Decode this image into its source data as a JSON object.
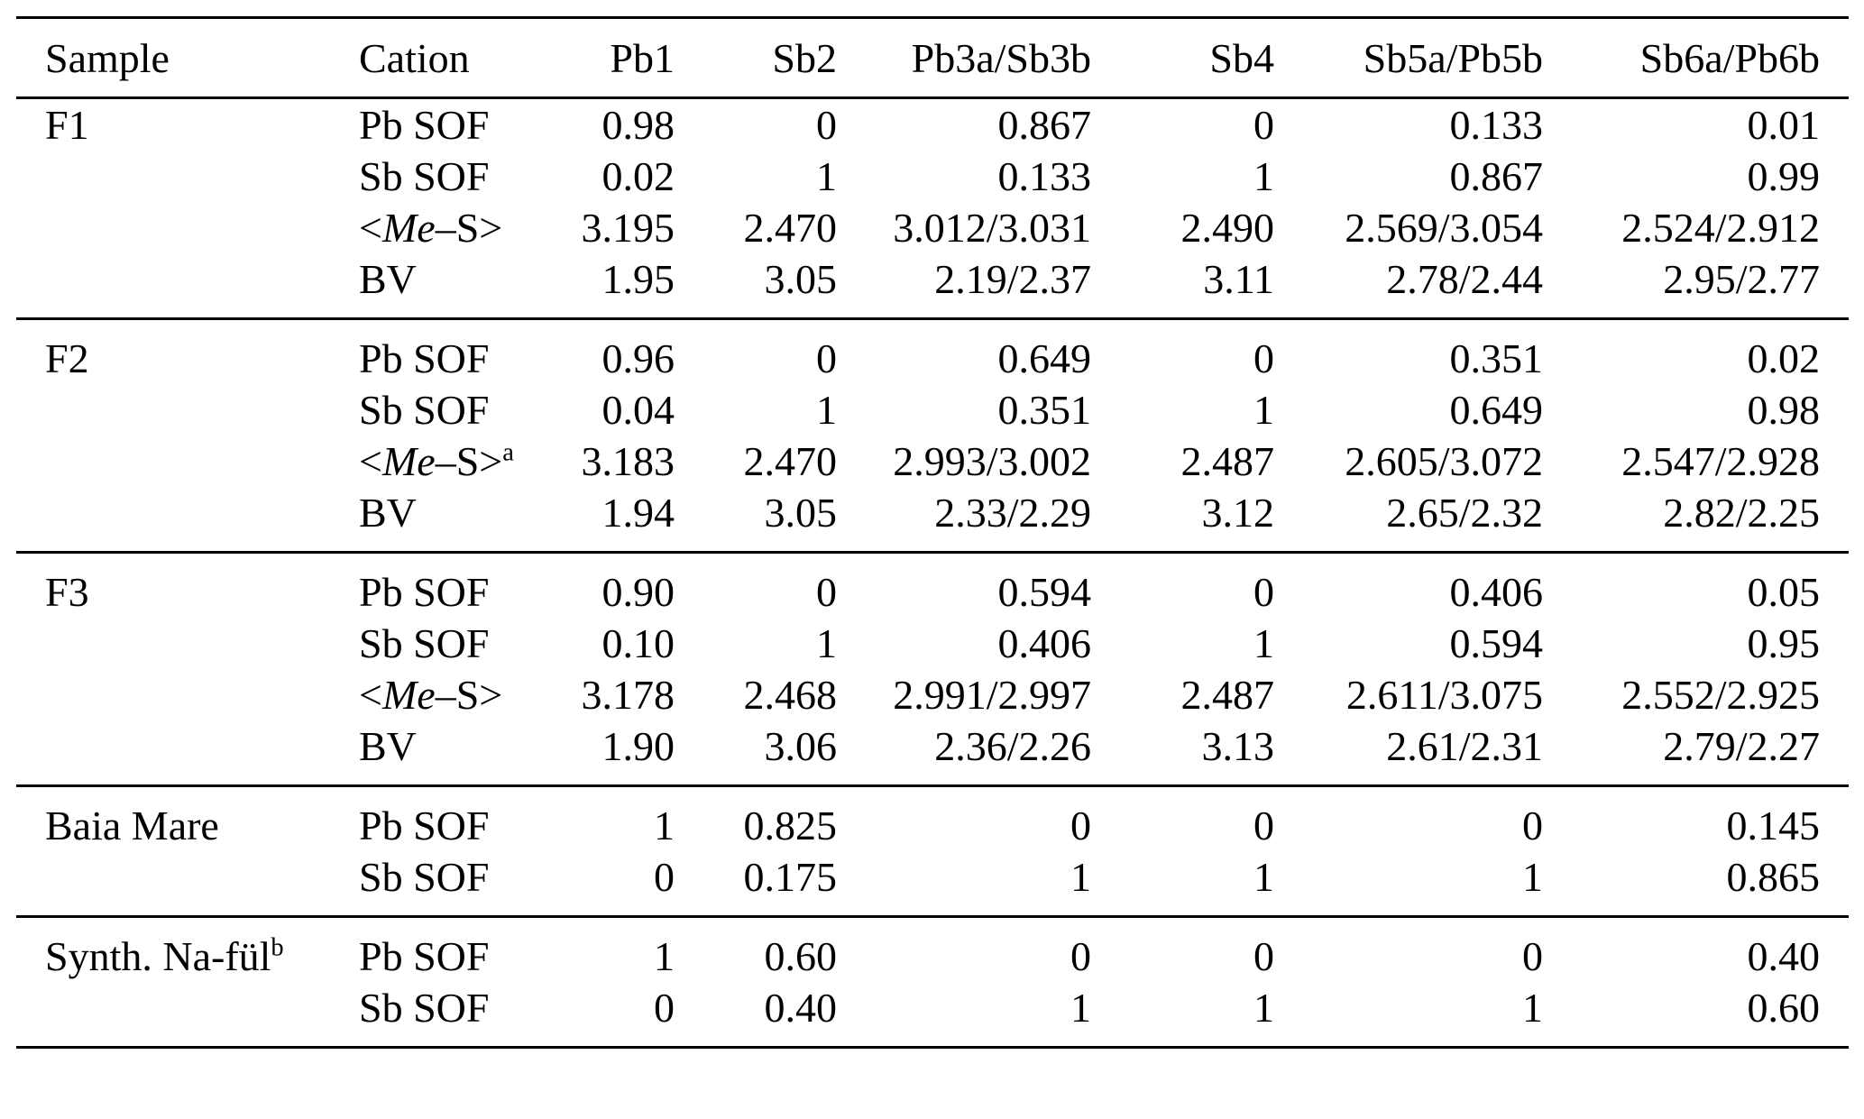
{
  "table": {
    "header": {
      "sample": "Sample",
      "cation": "Cation",
      "site_columns": [
        "Pb1",
        "Sb2",
        "Pb3a/Sb3b",
        "Sb4",
        "Sb5a/Pb5b",
        "Sb6a/Pb6b"
      ]
    },
    "groups": [
      {
        "sample": "F1",
        "sample_sup": "",
        "rows": [
          {
            "label": {
              "pre": "Pb SOF",
              "it": "",
              "post": "",
              "sup": ""
            },
            "values": [
              "0.98",
              "0",
              "0.867",
              "0",
              "0.133",
              "0.01"
            ]
          },
          {
            "label": {
              "pre": "Sb SOF",
              "it": "",
              "post": "",
              "sup": ""
            },
            "values": [
              "0.02",
              "1",
              "0.133",
              "1",
              "0.867",
              "0.99"
            ]
          },
          {
            "label": {
              "pre": "<",
              "it": "Me",
              "post": "–S>",
              "sup": ""
            },
            "values": [
              "3.195",
              "2.470",
              "3.012/3.031",
              "2.490",
              "2.569/3.054",
              "2.524/2.912"
            ]
          },
          {
            "label": {
              "pre": "BV",
              "it": "",
              "post": "",
              "sup": ""
            },
            "values": [
              "1.95",
              "3.05",
              "2.19/2.37",
              "3.11",
              "2.78/2.44",
              "2.95/2.77"
            ]
          }
        ]
      },
      {
        "sample": "F2",
        "sample_sup": "",
        "rows": [
          {
            "label": {
              "pre": "Pb SOF",
              "it": "",
              "post": "",
              "sup": ""
            },
            "values": [
              "0.96",
              "0",
              "0.649",
              "0",
              "0.351",
              "0.02"
            ]
          },
          {
            "label": {
              "pre": "Sb SOF",
              "it": "",
              "post": "",
              "sup": ""
            },
            "values": [
              "0.04",
              "1",
              "0.351",
              "1",
              "0.649",
              "0.98"
            ]
          },
          {
            "label": {
              "pre": "<",
              "it": "Me",
              "post": "–S>",
              "sup": "a"
            },
            "values": [
              "3.183",
              "2.470",
              "2.993/3.002",
              "2.487",
              "2.605/3.072",
              "2.547/2.928"
            ]
          },
          {
            "label": {
              "pre": "BV",
              "it": "",
              "post": "",
              "sup": ""
            },
            "values": [
              "1.94",
              "3.05",
              "2.33/2.29",
              "3.12",
              "2.65/2.32",
              "2.82/2.25"
            ]
          }
        ]
      },
      {
        "sample": "F3",
        "sample_sup": "",
        "rows": [
          {
            "label": {
              "pre": "Pb SOF",
              "it": "",
              "post": "",
              "sup": ""
            },
            "values": [
              "0.90",
              "0",
              "0.594",
              "0",
              "0.406",
              "0.05"
            ]
          },
          {
            "label": {
              "pre": "Sb SOF",
              "it": "",
              "post": "",
              "sup": ""
            },
            "values": [
              "0.10",
              "1",
              "0.406",
              "1",
              "0.594",
              "0.95"
            ]
          },
          {
            "label": {
              "pre": "<",
              "it": "Me",
              "post": "–S>",
              "sup": ""
            },
            "values": [
              "3.178",
              "2.468",
              "2.991/2.997",
              "2.487",
              "2.611/3.075",
              "2.552/2.925"
            ]
          },
          {
            "label": {
              "pre": "BV",
              "it": "",
              "post": "",
              "sup": ""
            },
            "values": [
              "1.90",
              "3.06",
              "2.36/2.26",
              "3.13",
              "2.61/2.31",
              "2.79/2.27"
            ]
          }
        ]
      },
      {
        "sample": "Baia Mare",
        "sample_sup": "",
        "rows": [
          {
            "label": {
              "pre": "Pb SOF",
              "it": "",
              "post": "",
              "sup": ""
            },
            "values": [
              "1",
              "0.825",
              "0",
              "0",
              "0",
              "0.145"
            ]
          },
          {
            "label": {
              "pre": "Sb SOF",
              "it": "",
              "post": "",
              "sup": ""
            },
            "values": [
              "0",
              "0.175",
              "1",
              "1",
              "1",
              "0.865"
            ]
          }
        ]
      },
      {
        "sample": "Synth. Na-fül",
        "sample_sup": "b",
        "rows": [
          {
            "label": {
              "pre": "Pb SOF",
              "it": "",
              "post": "",
              "sup": ""
            },
            "values": [
              "1",
              "0.60",
              "0",
              "0",
              "0",
              "0.40"
            ]
          },
          {
            "label": {
              "pre": "Sb SOF",
              "it": "",
              "post": "",
              "sup": ""
            },
            "values": [
              "0",
              "0.40",
              "1",
              "1",
              "1",
              "0.60"
            ]
          }
        ]
      }
    ]
  }
}
